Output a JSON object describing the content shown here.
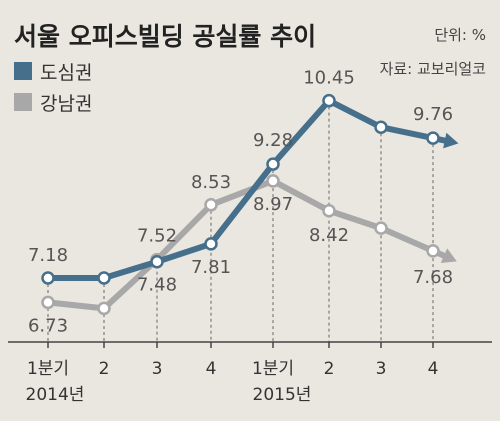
{
  "chart_data": {
    "type": "line",
    "title": "서울 오피스빌딩 공실률 추이",
    "unit": "단위: %",
    "source": "자료: 교보리얼코",
    "categories": [
      "1분기",
      "2",
      "3",
      "4",
      "1분기",
      "2",
      "3",
      "4"
    ],
    "year_labels": [
      "2014년",
      "2015년"
    ],
    "series": [
      {
        "name": "도심권",
        "color": "#466f8c",
        "values": [
          7.18,
          7.18,
          7.48,
          7.81,
          9.28,
          10.45,
          9.96,
          9.76
        ],
        "labels": [
          "7.18",
          "",
          "7.48",
          "7.81",
          "9.28",
          "10.45",
          "",
          "9.76"
        ]
      },
      {
        "name": "강남권",
        "color": "#a8a8a8",
        "values": [
          6.73,
          6.62,
          7.52,
          8.53,
          8.97,
          8.42,
          8.1,
          7.68
        ],
        "labels": [
          "6.73",
          "",
          "7.52",
          "8.53",
          "8.97",
          "8.42",
          "",
          "7.68"
        ]
      }
    ],
    "ylim": [
      6.0,
      11.2
    ],
    "grid": "dashed vertical lines per quarter",
    "legend": "top-left"
  }
}
